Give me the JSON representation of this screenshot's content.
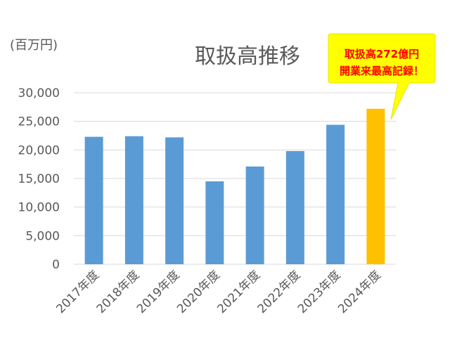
{
  "chart_data": {
    "type": "bar",
    "title": "取扱高推移",
    "unit_label": "(百万円)",
    "categories": [
      "2017年度",
      "2018年度",
      "2019年度",
      "2020年度",
      "2021年度",
      "2022年度",
      "2023年度",
      "2024年度"
    ],
    "values": [
      22300,
      22400,
      22200,
      14500,
      17100,
      19800,
      24400,
      27200
    ],
    "ylim": [
      0,
      30000
    ],
    "yticks": [
      0,
      5000,
      10000,
      15000,
      20000,
      25000,
      30000
    ],
    "ytick_labels": [
      "0",
      "5,000",
      "10,000",
      "15,000",
      "20,000",
      "25,000",
      "30,000"
    ],
    "grid": true,
    "colors": {
      "bar": "#5b9bd5",
      "highlight_bar": "#ffc000",
      "grid": "#d9d9d9",
      "callout_fill": "#ffff00",
      "callout_text": "#ff0000"
    },
    "highlight_index": 7,
    "annotation": {
      "lines": [
        "取扱高272億円",
        "開業来最高記録！"
      ]
    }
  }
}
